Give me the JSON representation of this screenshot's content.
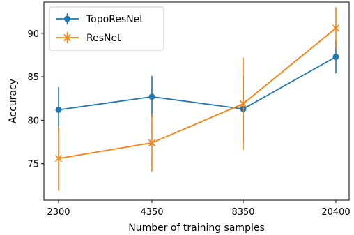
{
  "chart_data": {
    "type": "line",
    "title": "",
    "xlabel": "Number of training samples",
    "ylabel": "Accuracy",
    "categories": [
      "2300",
      "4350",
      "8350",
      "20400"
    ],
    "ylim": [
      70.8,
      93.6
    ],
    "yticks": [
      75,
      80,
      85,
      90
    ],
    "grid": false,
    "legend_position": "top-left",
    "series": [
      {
        "name": "TopoResNet",
        "color": "#1f77b4",
        "marker": "circle",
        "values": [
          81.2,
          82.7,
          81.3,
          87.3
        ],
        "error": [
          2.6,
          2.4,
          3.8,
          1.9
        ]
      },
      {
        "name": "ResNet",
        "color": "#ff7f0e",
        "marker": "x",
        "values": [
          75.6,
          77.4,
          81.9,
          90.6
        ],
        "error": [
          3.7,
          3.3,
          5.3,
          2.4
        ]
      }
    ]
  }
}
